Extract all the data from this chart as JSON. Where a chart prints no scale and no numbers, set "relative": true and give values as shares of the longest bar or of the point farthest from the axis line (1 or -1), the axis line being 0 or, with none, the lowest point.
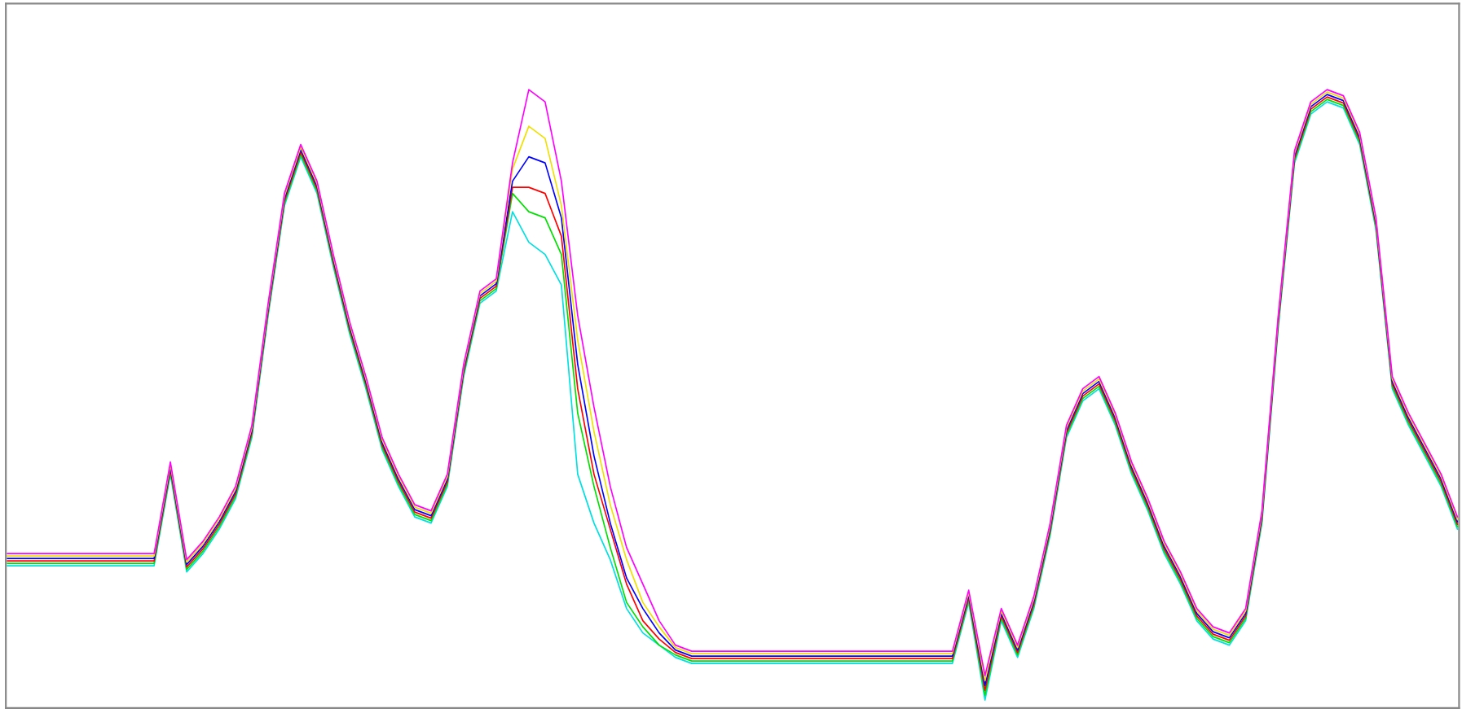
{
  "chart_data": {
    "type": "line",
    "relative": true,
    "categories": [
      null,
      null,
      null,
      null,
      null,
      null,
      null,
      null,
      null,
      null,
      null,
      null,
      null,
      null,
      null,
      null,
      null,
      null,
      null,
      null,
      null,
      null,
      null,
      null,
      null,
      null,
      null,
      null,
      null,
      null,
      null,
      null,
      null,
      null,
      null,
      null,
      null,
      null,
      null,
      null,
      null,
      null,
      null,
      null,
      null,
      null,
      null,
      null,
      null,
      null,
      null,
      null,
      null,
      null,
      null,
      null,
      null,
      null,
      null,
      null,
      null,
      null,
      null,
      null,
      null,
      null,
      null,
      null,
      null,
      null,
      null,
      null,
      null,
      null,
      null,
      null,
      null,
      null,
      null,
      null,
      null,
      null,
      null,
      null,
      null,
      null,
      null,
      null,
      null,
      null
    ],
    "series": [
      {
        "color": "#00e0e0",
        "values": [
          0.22,
          0.22,
          0.22,
          0.22,
          0.22,
          0.22,
          0.22,
          0.22,
          0.22,
          0.22,
          0.37,
          0.21,
          0.24,
          0.28,
          0.33,
          0.43,
          0.63,
          0.81,
          0.89,
          0.83,
          0.71,
          0.6,
          0.51,
          0.41,
          0.35,
          0.3,
          0.29,
          0.35,
          0.53,
          0.65,
          0.67,
          0.8,
          0.75,
          0.73,
          0.68,
          0.37,
          0.29,
          0.23,
          0.15,
          0.11,
          0.09,
          0.07,
          0.06,
          0.06,
          0.06,
          0.06,
          0.06,
          0.06,
          0.06,
          0.06,
          0.06,
          0.06,
          0.06,
          0.06,
          0.06,
          0.06,
          0.06,
          0.06,
          0.06,
          0.16,
          0.0,
          0.13,
          0.07,
          0.15,
          0.27,
          0.43,
          0.49,
          0.51,
          0.45,
          0.37,
          0.31,
          0.24,
          0.19,
          0.13,
          0.1,
          0.09,
          0.13,
          0.29,
          0.61,
          0.88,
          0.96,
          0.98,
          0.97,
          0.91,
          0.77,
          0.51,
          0.45,
          0.4,
          0.35,
          0.28
        ]
      },
      {
        "color": "#00e000",
        "values": [
          0.224,
          0.224,
          0.224,
          0.224,
          0.224,
          0.224,
          0.224,
          0.224,
          0.224,
          0.224,
          0.374,
          0.214,
          0.244,
          0.284,
          0.334,
          0.434,
          0.634,
          0.814,
          0.894,
          0.834,
          0.714,
          0.604,
          0.514,
          0.414,
          0.354,
          0.304,
          0.294,
          0.354,
          0.534,
          0.654,
          0.674,
          0.83,
          0.8,
          0.79,
          0.73,
          0.47,
          0.35,
          0.25,
          0.16,
          0.12,
          0.09,
          0.074,
          0.064,
          0.064,
          0.064,
          0.064,
          0.064,
          0.064,
          0.064,
          0.064,
          0.064,
          0.064,
          0.064,
          0.064,
          0.064,
          0.064,
          0.064,
          0.064,
          0.064,
          0.164,
          0.008,
          0.134,
          0.074,
          0.154,
          0.274,
          0.434,
          0.494,
          0.514,
          0.454,
          0.374,
          0.314,
          0.244,
          0.194,
          0.134,
          0.104,
          0.094,
          0.134,
          0.294,
          0.614,
          0.884,
          0.964,
          0.984,
          0.974,
          0.914,
          0.774,
          0.514,
          0.454,
          0.404,
          0.354,
          0.284
        ]
      },
      {
        "color": "#ff0000",
        "values": [
          0.228,
          0.228,
          0.228,
          0.228,
          0.228,
          0.228,
          0.228,
          0.228,
          0.228,
          0.228,
          0.378,
          0.218,
          0.248,
          0.288,
          0.338,
          0.438,
          0.638,
          0.818,
          0.898,
          0.838,
          0.718,
          0.608,
          0.518,
          0.418,
          0.358,
          0.308,
          0.298,
          0.358,
          0.538,
          0.658,
          0.678,
          0.84,
          0.84,
          0.83,
          0.76,
          0.51,
          0.37,
          0.28,
          0.19,
          0.13,
          0.1,
          0.078,
          0.068,
          0.068,
          0.068,
          0.068,
          0.068,
          0.068,
          0.068,
          0.068,
          0.068,
          0.068,
          0.068,
          0.068,
          0.068,
          0.068,
          0.068,
          0.068,
          0.068,
          0.168,
          0.016,
          0.138,
          0.078,
          0.158,
          0.278,
          0.438,
          0.498,
          0.518,
          0.458,
          0.378,
          0.318,
          0.248,
          0.198,
          0.138,
          0.108,
          0.098,
          0.138,
          0.298,
          0.618,
          0.888,
          0.968,
          0.988,
          0.978,
          0.918,
          0.778,
          0.518,
          0.458,
          0.408,
          0.358,
          0.288
        ]
      },
      {
        "color": "#0000ff",
        "values": [
          0.232,
          0.232,
          0.232,
          0.232,
          0.232,
          0.232,
          0.232,
          0.232,
          0.232,
          0.232,
          0.382,
          0.222,
          0.252,
          0.292,
          0.342,
          0.442,
          0.642,
          0.822,
          0.902,
          0.842,
          0.722,
          0.612,
          0.522,
          0.422,
          0.362,
          0.312,
          0.302,
          0.362,
          0.542,
          0.662,
          0.682,
          0.85,
          0.89,
          0.88,
          0.79,
          0.55,
          0.4,
          0.29,
          0.2,
          0.15,
          0.11,
          0.082,
          0.072,
          0.072,
          0.072,
          0.072,
          0.072,
          0.072,
          0.072,
          0.072,
          0.072,
          0.072,
          0.072,
          0.072,
          0.072,
          0.072,
          0.072,
          0.072,
          0.072,
          0.172,
          0.024,
          0.142,
          0.082,
          0.162,
          0.282,
          0.442,
          0.502,
          0.522,
          0.462,
          0.382,
          0.322,
          0.252,
          0.202,
          0.142,
          0.112,
          0.102,
          0.142,
          0.302,
          0.622,
          0.892,
          0.972,
          0.992,
          0.982,
          0.922,
          0.782,
          0.522,
          0.462,
          0.412,
          0.362,
          0.292
        ]
      },
      {
        "color": "#f0e000",
        "values": [
          0.236,
          0.236,
          0.236,
          0.236,
          0.236,
          0.236,
          0.236,
          0.236,
          0.236,
          0.236,
          0.386,
          0.226,
          0.256,
          0.296,
          0.346,
          0.446,
          0.646,
          0.826,
          0.906,
          0.846,
          0.726,
          0.616,
          0.526,
          0.426,
          0.366,
          0.316,
          0.306,
          0.366,
          0.546,
          0.666,
          0.686,
          0.87,
          0.94,
          0.92,
          0.81,
          0.59,
          0.44,
          0.32,
          0.23,
          0.16,
          0.12,
          0.086,
          0.076,
          0.076,
          0.076,
          0.076,
          0.076,
          0.076,
          0.076,
          0.076,
          0.076,
          0.076,
          0.076,
          0.076,
          0.076,
          0.076,
          0.076,
          0.076,
          0.076,
          0.176,
          0.032,
          0.146,
          0.086,
          0.166,
          0.286,
          0.446,
          0.506,
          0.526,
          0.466,
          0.386,
          0.326,
          0.256,
          0.206,
          0.146,
          0.116,
          0.106,
          0.146,
          0.306,
          0.626,
          0.896,
          0.976,
          0.996,
          0.986,
          0.926,
          0.786,
          0.526,
          0.466,
          0.416,
          0.366,
          0.296
        ]
      },
      {
        "color": "#ff00ff",
        "values": [
          0.24,
          0.24,
          0.24,
          0.24,
          0.24,
          0.24,
          0.24,
          0.24,
          0.24,
          0.24,
          0.39,
          0.23,
          0.26,
          0.3,
          0.35,
          0.45,
          0.65,
          0.83,
          0.91,
          0.85,
          0.73,
          0.62,
          0.53,
          0.43,
          0.37,
          0.32,
          0.31,
          0.37,
          0.55,
          0.67,
          0.69,
          0.88,
          1.0,
          0.98,
          0.85,
          0.63,
          0.48,
          0.35,
          0.25,
          0.19,
          0.13,
          0.09,
          0.08,
          0.08,
          0.08,
          0.08,
          0.08,
          0.08,
          0.08,
          0.08,
          0.08,
          0.08,
          0.08,
          0.08,
          0.08,
          0.08,
          0.08,
          0.08,
          0.08,
          0.18,
          0.04,
          0.15,
          0.09,
          0.17,
          0.29,
          0.45,
          0.51,
          0.53,
          0.47,
          0.39,
          0.33,
          0.26,
          0.21,
          0.15,
          0.12,
          0.11,
          0.15,
          0.31,
          0.63,
          0.9,
          0.98,
          1.0,
          0.99,
          0.93,
          0.79,
          0.53,
          0.47,
          0.42,
          0.37,
          0.3
        ]
      }
    ]
  }
}
